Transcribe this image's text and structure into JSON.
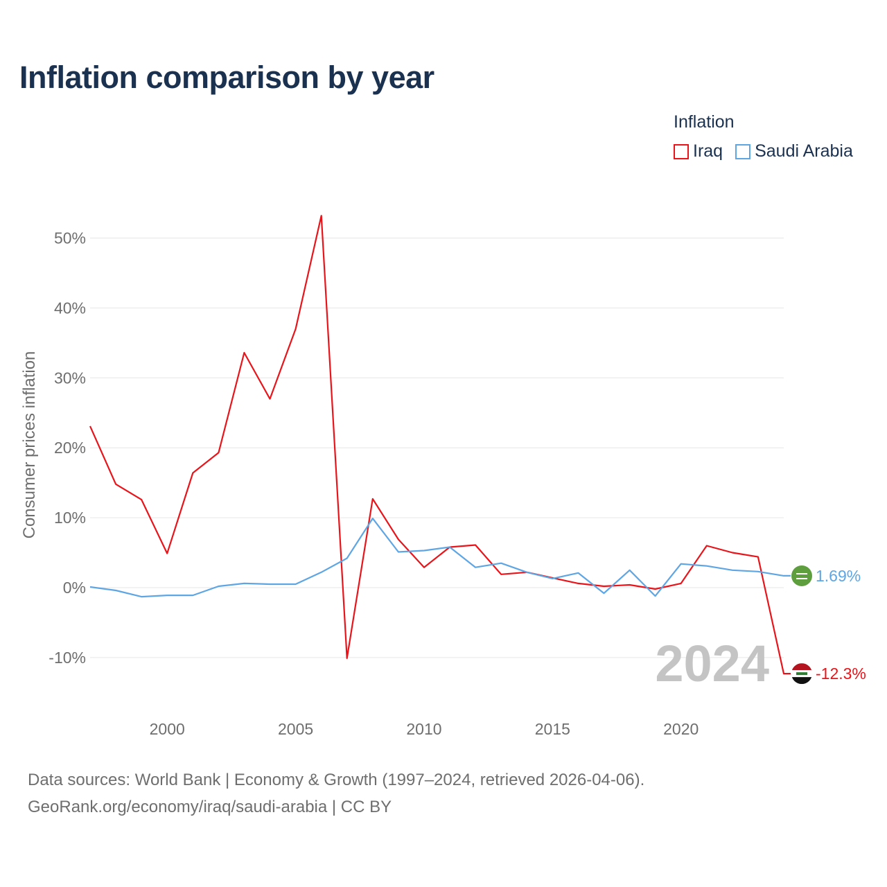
{
  "title": "Inflation comparison by year",
  "legend": {
    "title": "Inflation",
    "items": [
      {
        "name": "Iraq",
        "color": "#e8141a"
      },
      {
        "name": "Saudi Arabia",
        "color": "#5ea5e4"
      }
    ]
  },
  "source": {
    "line1": "Data sources: World Bank | Economy & Growth (1997–2024, retrieved 2026-04-06).",
    "line2": "GeoRank.org/economy/iraq/saudi-arabia | CC BY"
  },
  "chart_data": {
    "type": "line",
    "title": "Inflation comparison by year",
    "xlabel": "",
    "ylabel": "Consumer prices inflation",
    "year_label": "2024",
    "xlim": [
      1997,
      2024
    ],
    "ylim": [
      -17,
      55
    ],
    "x_ticks": [
      2000,
      2005,
      2010,
      2015,
      2020
    ],
    "x_tick_labels": [
      "2000",
      "2005",
      "2010",
      "2015",
      "2020"
    ],
    "y_ticks": [
      -10,
      0,
      10,
      20,
      30,
      40,
      50
    ],
    "y_tick_labels": [
      "-10%",
      "0%",
      "10%",
      "20%",
      "30%",
      "40%",
      "50%"
    ],
    "x": [
      1997,
      1998,
      1999,
      2000,
      2001,
      2002,
      2003,
      2004,
      2005,
      2006,
      2007,
      2008,
      2009,
      2010,
      2011,
      2012,
      2013,
      2014,
      2015,
      2016,
      2017,
      2018,
      2019,
      2020,
      2021,
      2022,
      2023,
      2024
    ],
    "series": [
      {
        "name": "Iraq",
        "color": "#e8141a",
        "end_label": "-12.3%",
        "values": [
          23.1,
          14.8,
          12.6,
          4.9,
          16.4,
          19.3,
          33.6,
          27.0,
          37.0,
          53.2,
          -10.1,
          12.7,
          6.9,
          2.9,
          5.8,
          6.1,
          1.9,
          2.2,
          1.4,
          0.6,
          0.2,
          0.4,
          -0.2,
          0.6,
          6.0,
          5.0,
          4.4,
          -12.3
        ]
      },
      {
        "name": "Saudi Arabia",
        "color": "#5ea5e4",
        "end_label": "1.69%",
        "values": [
          0.1,
          -0.4,
          -1.3,
          -1.1,
          -1.1,
          0.2,
          0.6,
          0.5,
          0.5,
          2.2,
          4.2,
          9.9,
          5.1,
          5.3,
          5.8,
          2.9,
          3.5,
          2.2,
          1.3,
          2.1,
          -0.8,
          2.5,
          -1.2,
          3.4,
          3.1,
          2.5,
          2.3,
          1.69
        ]
      }
    ]
  }
}
